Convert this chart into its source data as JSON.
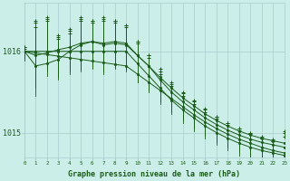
{
  "title": "Graphe pression niveau de la mer (hPa)",
  "background_color": "#cceee8",
  "grid_color": "#aacccc",
  "line_color": "#1a5c1a",
  "text_color": "#1a5c1a",
  "xlim": [
    0,
    23
  ],
  "ylim": [
    1014.7,
    1016.6
  ],
  "yticks": [
    1015,
    1016
  ],
  "xticks": [
    0,
    1,
    2,
    3,
    4,
    5,
    6,
    7,
    8,
    9,
    10,
    11,
    12,
    13,
    14,
    15,
    16,
    17,
    18,
    19,
    20,
    21,
    22,
    23
  ],
  "hours": [
    0,
    1,
    2,
    3,
    4,
    5,
    6,
    7,
    8,
    9,
    10,
    11,
    12,
    13,
    14,
    15,
    16,
    17,
    18,
    19,
    20,
    21,
    22,
    23
  ],
  "series": [
    {
      "base": [
        1016.0,
        1016.0,
        1016.0,
        1016.0,
        1016.0,
        1016.0,
        1016.0,
        1016.0,
        1016.0,
        1016.0,
        1015.85,
        1015.7,
        1015.55,
        1015.4,
        1015.28,
        1015.18,
        1015.08,
        1015.0,
        1014.93,
        1014.87,
        1014.82,
        1014.78,
        1014.75,
        1014.72
      ],
      "high": [
        1016.05,
        1016.38,
        1016.42,
        1016.18,
        1016.28,
        1016.42,
        1016.38,
        1016.42,
        1016.38,
        1016.32,
        1016.12,
        1015.95,
        1015.78,
        1015.62,
        1015.5,
        1015.4,
        1015.3,
        1015.2,
        1015.12,
        1015.05,
        1015.0,
        1014.93,
        1014.9,
        1014.95
      ],
      "low": [
        1015.92,
        1015.6,
        1015.8,
        1015.7,
        1015.8,
        1015.78,
        1015.82,
        1015.78,
        1015.82,
        1015.78,
        1015.62,
        1015.5,
        1015.35,
        1015.23,
        1015.12,
        1015.02,
        1014.93,
        1014.85,
        1014.78,
        1014.72,
        1014.67,
        1014.63,
        1014.6,
        1014.57
      ]
    },
    {
      "base": [
        1016.0,
        1015.82,
        1015.85,
        1015.9,
        1016.0,
        1016.08,
        1016.12,
        1016.1,
        1016.12,
        1016.1,
        1015.95,
        1015.82,
        1015.65,
        1015.5,
        1015.38,
        1015.28,
        1015.18,
        1015.1,
        1015.03,
        1014.97,
        1014.92,
        1014.88,
        1014.85,
        1014.82
      ],
      "high": [
        1016.05,
        1016.3,
        1016.38,
        1016.15,
        1016.22,
        1016.38,
        1016.35,
        1016.38,
        1016.35,
        1016.3,
        1016.1,
        1015.92,
        1015.72,
        1015.57,
        1015.45,
        1015.35,
        1015.25,
        1015.17,
        1015.1,
        1015.03,
        1014.98,
        1014.93,
        1014.9,
        1015.0
      ],
      "low": [
        1015.88,
        1015.45,
        1015.7,
        1015.65,
        1015.72,
        1015.75,
        1015.78,
        1015.72,
        1015.78,
        1015.75,
        1015.62,
        1015.52,
        1015.38,
        1015.25,
        1015.15,
        1015.05,
        1014.96,
        1014.88,
        1014.82,
        1014.76,
        1014.72,
        1014.68,
        1014.65,
        1014.62
      ]
    },
    {
      "base": [
        1016.0,
        1015.95,
        1015.98,
        1016.02,
        1016.05,
        1016.1,
        1016.12,
        1016.08,
        1016.1,
        1016.08,
        1015.95,
        1015.82,
        1015.68,
        1015.55,
        1015.43,
        1015.33,
        1015.23,
        1015.15,
        1015.08,
        1015.02,
        1014.97,
        1014.93,
        1014.9,
        1014.87
      ],
      "high": [
        1016.03,
        1016.35,
        1016.4,
        1016.2,
        1016.25,
        1016.4,
        1016.38,
        1016.4,
        1016.38,
        1016.32,
        1016.12,
        1015.95,
        1015.75,
        1015.6,
        1015.48,
        1015.38,
        1015.28,
        1015.2,
        1015.12,
        1015.05,
        1015.0,
        1014.95,
        1014.92,
        1015.02
      ],
      "low": [
        1015.9,
        1015.55,
        1015.75,
        1015.68,
        1015.75,
        1015.77,
        1015.8,
        1015.75,
        1015.8,
        1015.77,
        1015.63,
        1015.52,
        1015.38,
        1015.27,
        1015.17,
        1015.07,
        1014.98,
        1014.9,
        1014.83,
        1014.78,
        1014.73,
        1014.69,
        1014.67,
        1014.63
      ]
    },
    {
      "base": [
        1016.0,
        1015.98,
        1015.96,
        1015.94,
        1015.92,
        1015.9,
        1015.88,
        1015.86,
        1015.84,
        1015.82,
        1015.72,
        1015.62,
        1015.52,
        1015.42,
        1015.32,
        1015.22,
        1015.13,
        1015.05,
        1014.98,
        1014.92,
        1014.87,
        1014.82,
        1014.78,
        1014.75
      ],
      "high": null,
      "low": null
    }
  ]
}
